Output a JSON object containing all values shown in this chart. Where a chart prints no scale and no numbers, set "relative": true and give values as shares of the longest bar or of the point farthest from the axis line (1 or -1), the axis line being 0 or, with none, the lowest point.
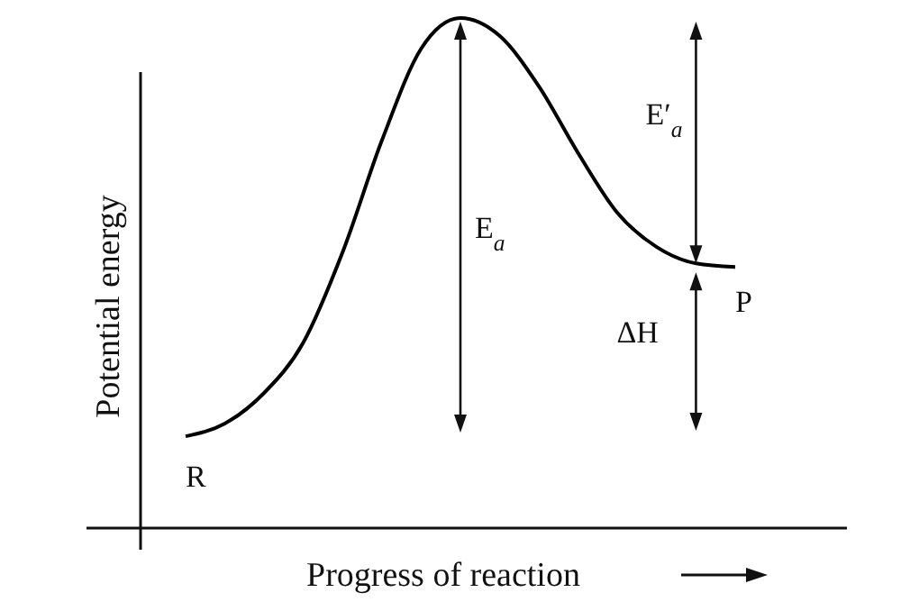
{
  "chart_data": {
    "type": "line",
    "relative": true,
    "xlabel": "Progress of reaction",
    "ylabel": "Potential energy",
    "categories": [
      null,
      null,
      null,
      null,
      null,
      null,
      null,
      null,
      null,
      null,
      null,
      null,
      null,
      null,
      null
    ],
    "series": [
      {
        "color": "#000000",
        "values": [
          0.18,
          0.205,
          0.265,
          0.364,
          0.541,
          0.76,
          0.94,
          1.0,
          0.965,
          0.866,
          0.735,
          0.618,
          0.551,
          0.519,
          0.512
        ]
      }
    ],
    "annotations": [
      "R",
      "P",
      "E$_{a}$",
      "E′$_{a}$",
      "ΔH"
    ],
    "marker": "none",
    "line_style": "solid"
  }
}
